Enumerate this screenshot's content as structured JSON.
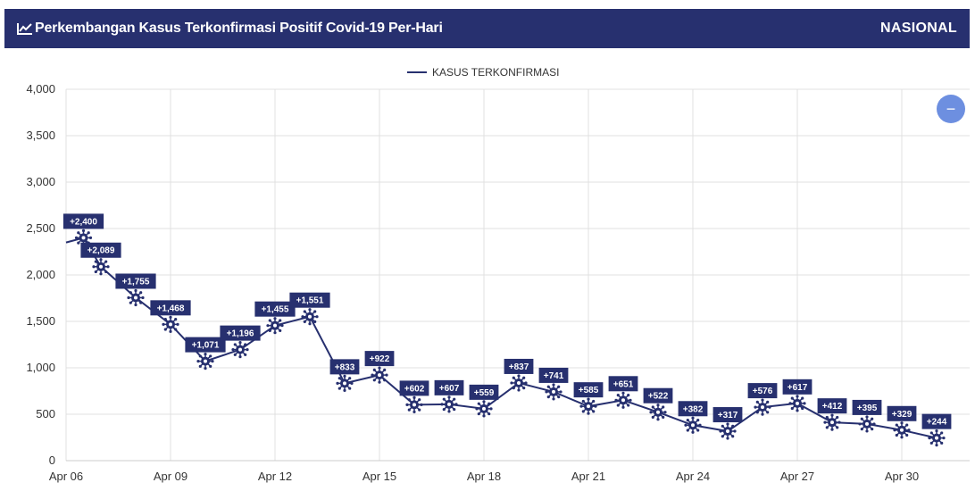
{
  "header": {
    "title": "Perkembangan Kasus Terkonfirmasi Positif Covid-19 Per-Hari",
    "scope": "NASIONAL",
    "title_icon": "line-chart-icon"
  },
  "zoom_button": {
    "label": "−",
    "icon": "minus-icon"
  },
  "colors": {
    "header_bg": "#27306f",
    "line": "#27306f",
    "label_bg": "#27306f",
    "marker": "#27306f",
    "zoom_bg": "#6d8fe0",
    "grid": "#e0e0e0"
  },
  "chart_data": {
    "type": "line",
    "legend": {
      "entries": [
        "KASUS TERKONFIRMASI"
      ],
      "placement": "top-center"
    },
    "xlabel": "",
    "ylabel": "",
    "ylim": [
      0,
      4000
    ],
    "yticks": [
      "0",
      "500",
      "1,000",
      "1,500",
      "2,000",
      "2,500",
      "3,000",
      "3,500",
      "4,000"
    ],
    "ytick_values": [
      0,
      500,
      1000,
      1500,
      2000,
      2500,
      3000,
      3500,
      4000
    ],
    "xticks": [
      "Apr 06",
      "Apr 09",
      "Apr 12",
      "Apr 15",
      "Apr 18",
      "Apr 21",
      "Apr 24",
      "Apr 27",
      "Apr 30"
    ],
    "xtick_day_index": [
      0,
      3,
      6,
      9,
      12,
      15,
      18,
      21,
      24
    ],
    "x_first": "Apr 06",
    "x_last": "May 01",
    "grid": true,
    "series": [
      {
        "name": "KASUS TERKONFIRMASI",
        "x": [
          "Apr 06",
          "Apr 07",
          "Apr 08",
          "Apr 09",
          "Apr 10",
          "Apr 11",
          "Apr 12",
          "Apr 13",
          "Apr 14",
          "Apr 15",
          "Apr 16",
          "Apr 17",
          "Apr 18",
          "Apr 19",
          "Apr 20",
          "Apr 21",
          "Apr 22",
          "Apr 23",
          "Apr 24",
          "Apr 25",
          "Apr 26",
          "Apr 27",
          "Apr 28",
          "Apr 29",
          "Apr 30",
          "May 01"
        ],
        "day_index": [
          0.5,
          1,
          2,
          3,
          4,
          5,
          6,
          7,
          8,
          9,
          10,
          11,
          12,
          13,
          14,
          15,
          16,
          17,
          18,
          19,
          20,
          21,
          22,
          23,
          24,
          25
        ],
        "values": [
          2400,
          2089,
          1755,
          1468,
          1071,
          1196,
          1455,
          1551,
          833,
          922,
          602,
          607,
          559,
          837,
          741,
          585,
          651,
          522,
          382,
          317,
          576,
          617,
          412,
          395,
          329,
          244
        ],
        "labels": [
          "+2,400",
          "+2,089",
          "+1,755",
          "+1,468",
          "+1,071",
          "+1,196",
          "+1,455",
          "+1,551",
          "+833",
          "+922",
          "+602",
          "+607",
          "+559",
          "+837",
          "+741",
          "+585",
          "+651",
          "+522",
          "+382",
          "+317",
          "+576",
          "+617",
          "+412",
          "+395",
          "+329",
          "+244"
        ]
      }
    ],
    "leading_value": 2350
  }
}
